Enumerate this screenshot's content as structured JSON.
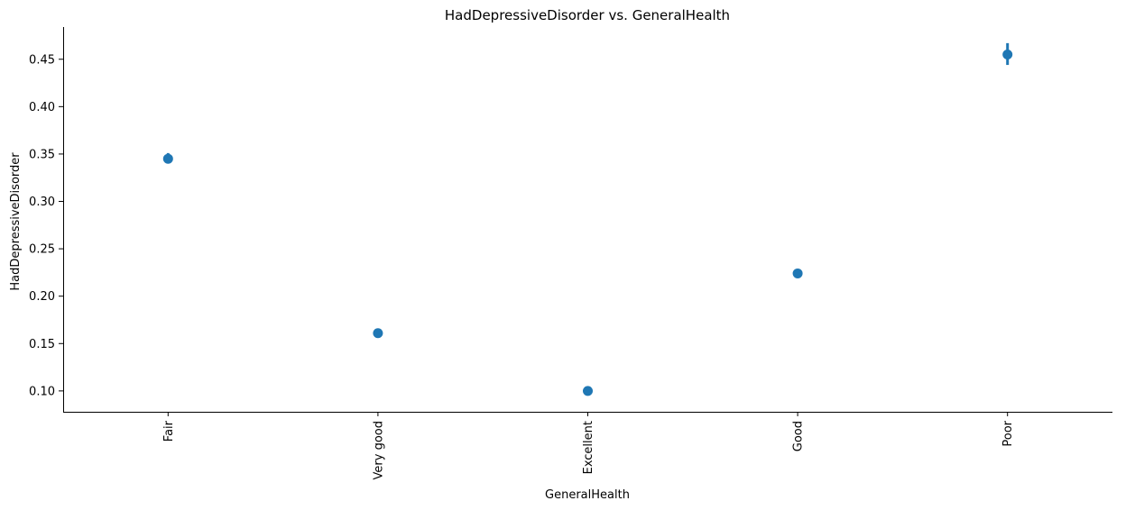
{
  "chart_data": {
    "type": "scatter",
    "title": "HadDepressiveDisorder vs. GeneralHealth",
    "xlabel": "GeneralHealth",
    "ylabel": "HadDepressiveDisorder",
    "categories": [
      "Fair",
      "Very good",
      "Excellent",
      "Good",
      "Poor"
    ],
    "values": [
      0.345,
      0.161,
      0.1,
      0.224,
      0.455
    ],
    "ci_low": [
      0.34,
      0.159,
      0.098,
      0.222,
      0.444
    ],
    "ci_high": [
      0.351,
      0.163,
      0.102,
      0.226,
      0.467
    ],
    "ylim": [
      0.078,
      0.484
    ],
    "yticks": [
      0.1,
      0.15,
      0.2,
      0.25,
      0.3,
      0.35,
      0.4,
      0.45
    ],
    "ytick_labels": [
      "0.10",
      "0.15",
      "0.20",
      "0.25",
      "0.30",
      "0.35",
      "0.40",
      "0.45"
    ],
    "grid": false,
    "legend": "none",
    "marker_color": "#1f77b4"
  }
}
